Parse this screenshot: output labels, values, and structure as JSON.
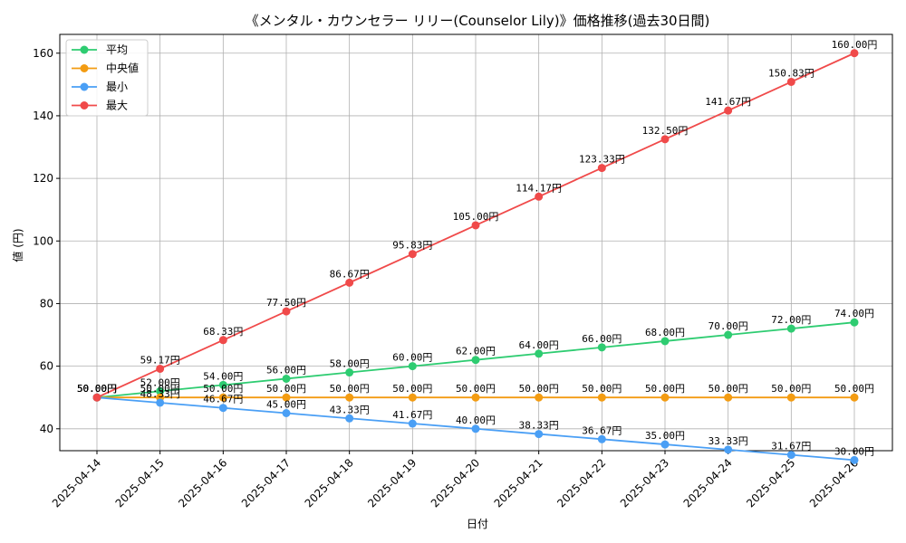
{
  "chart_data": {
    "type": "line",
    "title": "《メンタル・カウンセラー リリー(Counselor Lily)》価格推移(過去30日間)",
    "xlabel": "日付",
    "ylabel": "値 (円)",
    "categories": [
      "2025-04-14",
      "2025-04-15",
      "2025-04-16",
      "2025-04-17",
      "2025-04-18",
      "2025-04-19",
      "2025-04-20",
      "2025-04-21",
      "2025-04-22",
      "2025-04-23",
      "2025-04-24",
      "2025-04-25",
      "2025-04-26"
    ],
    "ylim": [
      33,
      166
    ],
    "yticks": [
      40,
      60,
      80,
      100,
      120,
      140,
      160
    ],
    "grid": true,
    "legend_position": "top-left",
    "label_suffix": "円",
    "series": [
      {
        "name": "平均",
        "color": "#2ecc71",
        "values": [
          50.0,
          52.0,
          54.0,
          56.0,
          58.0,
          60.0,
          62.0,
          64.0,
          66.0,
          68.0,
          70.0,
          72.0,
          74.0
        ]
      },
      {
        "name": "中央値",
        "color": "#f39c12",
        "values": [
          50.0,
          50.0,
          50.0,
          50.0,
          50.0,
          50.0,
          50.0,
          50.0,
          50.0,
          50.0,
          50.0,
          50.0,
          50.0
        ]
      },
      {
        "name": "最小",
        "color": "#4a9ff5",
        "values": [
          50.0,
          48.33,
          46.67,
          45.0,
          43.33,
          41.67,
          40.0,
          38.33,
          36.67,
          35.0,
          33.33,
          31.67,
          30.0
        ]
      },
      {
        "name": "最大",
        "color": "#f04a4a",
        "values": [
          50.0,
          59.17,
          68.33,
          77.5,
          86.67,
          95.83,
          105.0,
          114.17,
          123.33,
          132.5,
          141.67,
          150.83,
          160.0
        ]
      }
    ]
  }
}
